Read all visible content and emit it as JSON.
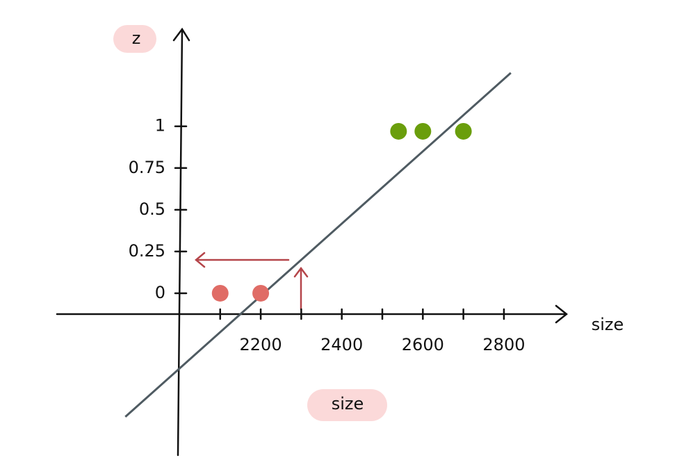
{
  "chart_data": {
    "type": "scatter",
    "ylabel": "z",
    "xlabel": "size",
    "axis_end_label": "size",
    "xlim": [
      1694,
      2963
    ],
    "ylim": [
      -0.97,
      1.59
    ],
    "xticks": [
      2200,
      2400,
      2600,
      2800
    ],
    "xminorticks": [
      2100,
      2300,
      2500,
      2700
    ],
    "yticks": [
      0,
      0.25,
      0.5,
      0.75,
      1
    ],
    "series": [
      {
        "color": "#e06c66",
        "x": [
          2100,
          2200
        ],
        "values": [
          0,
          0
        ]
      },
      {
        "color": "#6a9e0c",
        "x": [
          2540,
          2600,
          2700
        ],
        "values": [
          0.97,
          0.97,
          0.97
        ]
      }
    ],
    "fit_line": {
      "color": "#4f5b62",
      "x": [
        1866,
        2817
      ],
      "values": [
        -0.74,
        1.32
      ]
    }
  }
}
